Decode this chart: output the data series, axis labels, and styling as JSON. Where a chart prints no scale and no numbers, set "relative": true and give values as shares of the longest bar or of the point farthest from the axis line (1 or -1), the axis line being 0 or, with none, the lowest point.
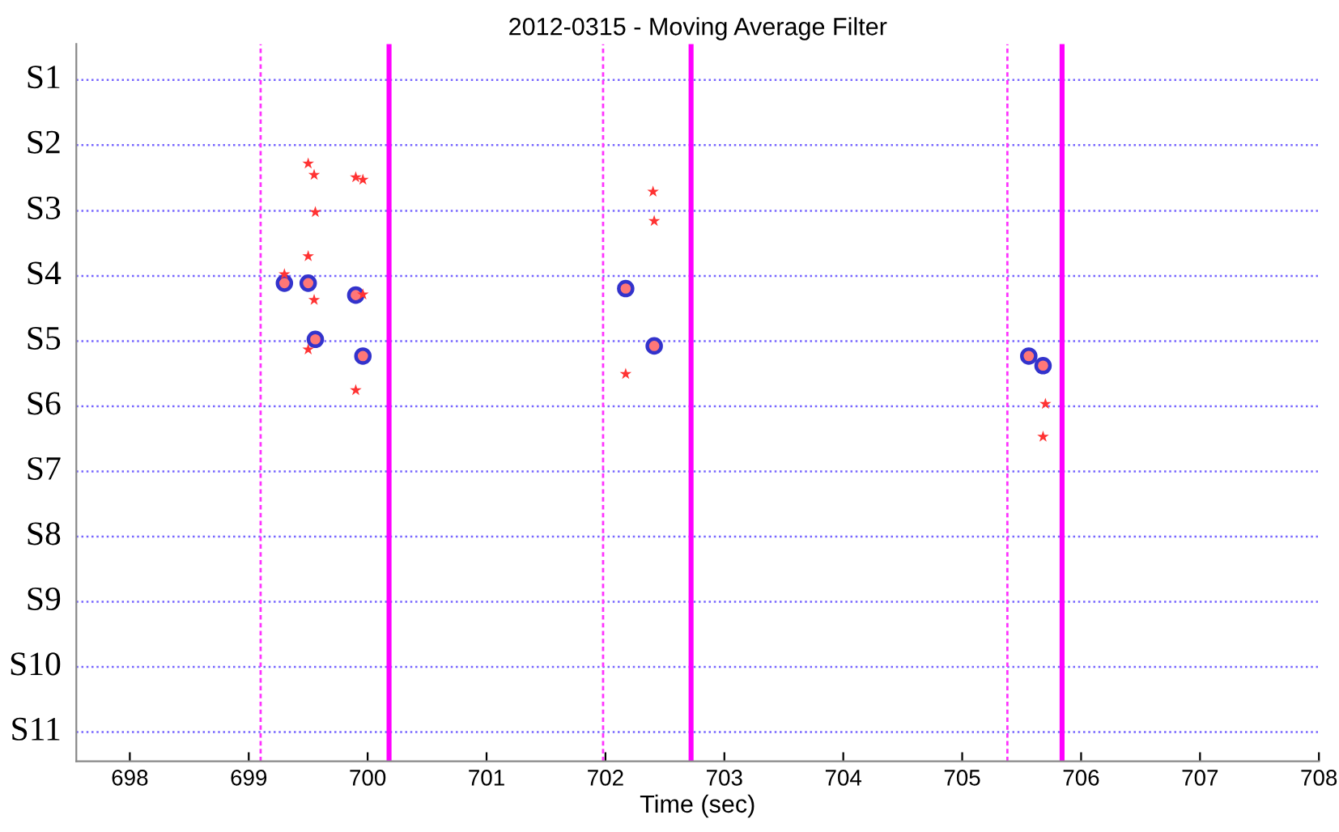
{
  "chart_data": {
    "type": "scatter",
    "title": "2012-0315 - Moving Average Filter",
    "xlabel": "Time (sec)",
    "xlim": [
      697.55,
      708
    ],
    "xticks": [
      698,
      699,
      700,
      701,
      702,
      703,
      704,
      705,
      706,
      707,
      708
    ],
    "relative": true,
    "series": [
      {
        "color": "#ff3333",
        "marker": "star",
        "x": [
          699.5,
          699.55,
          699.9,
          699.96,
          699.56,
          699.5,
          699.3,
          699.55,
          699.96,
          699.5,
          699.9,
          702.4,
          702.41,
          702.17,
          705.7,
          705.68
        ],
        "values": [
          1.0,
          0.981,
          0.977,
          0.973,
          0.919,
          0.845,
          0.815,
          0.772,
          0.781,
          0.689,
          0.621,
          0.953,
          0.904,
          0.648,
          0.598,
          0.543
        ]
      },
      {
        "color": "#3333cc",
        "marker": "circle",
        "x": [
          699.3,
          699.5,
          699.9,
          699.56,
          699.96,
          702.17,
          702.41,
          705.56,
          705.68
        ],
        "values": [
          0.8,
          0.8,
          0.78,
          0.706,
          0.678,
          0.791,
          0.695,
          0.678,
          0.662
        ]
      }
    ],
    "ref_lines": [
      {
        "axis": "y",
        "value": 1.14,
        "label": "S1",
        "color": "#7766ff",
        "line_style": "dotted"
      },
      {
        "axis": "y",
        "value": 1.031,
        "label": "S2",
        "color": "#7766ff",
        "line_style": "dotted"
      },
      {
        "axis": "y",
        "value": 0.921,
        "label": "S3",
        "color": "#7766ff",
        "line_style": "dotted"
      },
      {
        "axis": "y",
        "value": 0.812,
        "label": "S4",
        "color": "#7766ff",
        "line_style": "dotted"
      },
      {
        "axis": "y",
        "value": 0.703,
        "label": "S5",
        "color": "#7766ff",
        "line_style": "dotted"
      },
      {
        "axis": "y",
        "value": 0.594,
        "label": "S6",
        "color": "#7766ff",
        "line_style": "dotted"
      },
      {
        "axis": "y",
        "value": 0.485,
        "label": "S7",
        "color": "#7766ff",
        "line_style": "dotted"
      },
      {
        "axis": "y",
        "value": 0.376,
        "label": "S8",
        "color": "#7766ff",
        "line_style": "dotted"
      },
      {
        "axis": "y",
        "value": 0.267,
        "label": "S9",
        "color": "#7766ff",
        "line_style": "dotted"
      },
      {
        "axis": "y",
        "value": 0.158,
        "label": "S10",
        "color": "#7766ff",
        "line_style": "dotted"
      },
      {
        "axis": "y",
        "value": 0.049,
        "label": "S11",
        "color": "#7766ff",
        "line_style": "dotted"
      },
      {
        "axis": "x",
        "value": 699.1,
        "color": "#ff33ff",
        "line_style": "dashed"
      },
      {
        "axis": "x",
        "value": 700.18,
        "color": "#ff00ff",
        "line_style": "solid"
      },
      {
        "axis": "x",
        "value": 701.98,
        "color": "#ff33ff",
        "line_style": "dashed"
      },
      {
        "axis": "x",
        "value": 702.72,
        "color": "#ff00ff",
        "line_style": "solid"
      },
      {
        "axis": "x",
        "value": 705.38,
        "color": "#ff33ff",
        "line_style": "dashed"
      },
      {
        "axis": "x",
        "value": 705.84,
        "color": "#ff00ff",
        "line_style": "solid"
      }
    ]
  }
}
